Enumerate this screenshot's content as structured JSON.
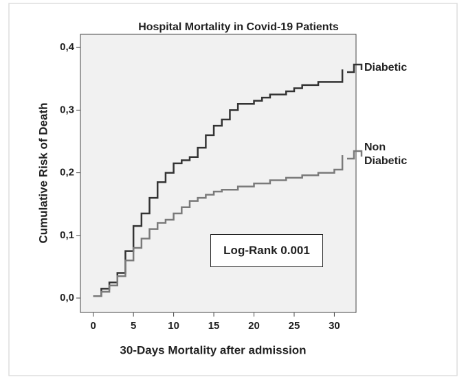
{
  "chart_data": {
    "type": "step",
    "title": "Hospital Mortality in Covid-19 Patients",
    "x_label": "30-Days Mortality after admission",
    "y_label": "Cumulative Risk of Death",
    "annotation": "Log-Rank 0.001",
    "xlim": [
      -1.6,
      32.7
    ],
    "ylim": [
      -0.023,
      0.421
    ],
    "xticks": [
      0,
      5,
      10,
      15,
      20,
      25,
      30
    ],
    "yticks": [
      {
        "value": 0,
        "label": "0,0"
      },
      {
        "value": 0.1,
        "label": "0,1"
      },
      {
        "value": 0.2,
        "label": "0,2"
      },
      {
        "value": 0.3,
        "label": "0,3"
      },
      {
        "value": 0.4,
        "label": "0,4"
      }
    ],
    "series": [
      {
        "name": "Diabetic",
        "color": "#333333",
        "x": [
          0,
          1,
          2,
          3,
          4,
          5,
          6,
          7,
          8,
          9,
          10,
          11,
          12,
          13,
          14,
          15,
          16,
          17,
          18,
          20,
          21,
          22,
          24,
          25,
          26,
          28,
          31
        ],
        "values": [
          0.003,
          0.015,
          0.025,
          0.04,
          0.075,
          0.115,
          0.135,
          0.16,
          0.185,
          0.2,
          0.215,
          0.22,
          0.225,
          0.24,
          0.26,
          0.275,
          0.285,
          0.3,
          0.31,
          0.315,
          0.32,
          0.325,
          0.33,
          0.335,
          0.34,
          0.345,
          0.365
        ]
      },
      {
        "name": "Non Diabetic",
        "color": "#7a7a7a",
        "x": [
          0,
          1,
          2,
          3,
          4,
          5,
          6,
          7,
          8,
          9,
          10,
          11,
          12,
          13,
          14,
          15,
          16,
          18,
          20,
          22,
          24,
          26,
          28,
          30,
          31
        ],
        "values": [
          0.003,
          0.01,
          0.02,
          0.035,
          0.06,
          0.08,
          0.095,
          0.11,
          0.12,
          0.125,
          0.135,
          0.145,
          0.155,
          0.16,
          0.165,
          0.17,
          0.173,
          0.178,
          0.183,
          0.188,
          0.192,
          0.196,
          0.2,
          0.205,
          0.228
        ]
      }
    ]
  }
}
